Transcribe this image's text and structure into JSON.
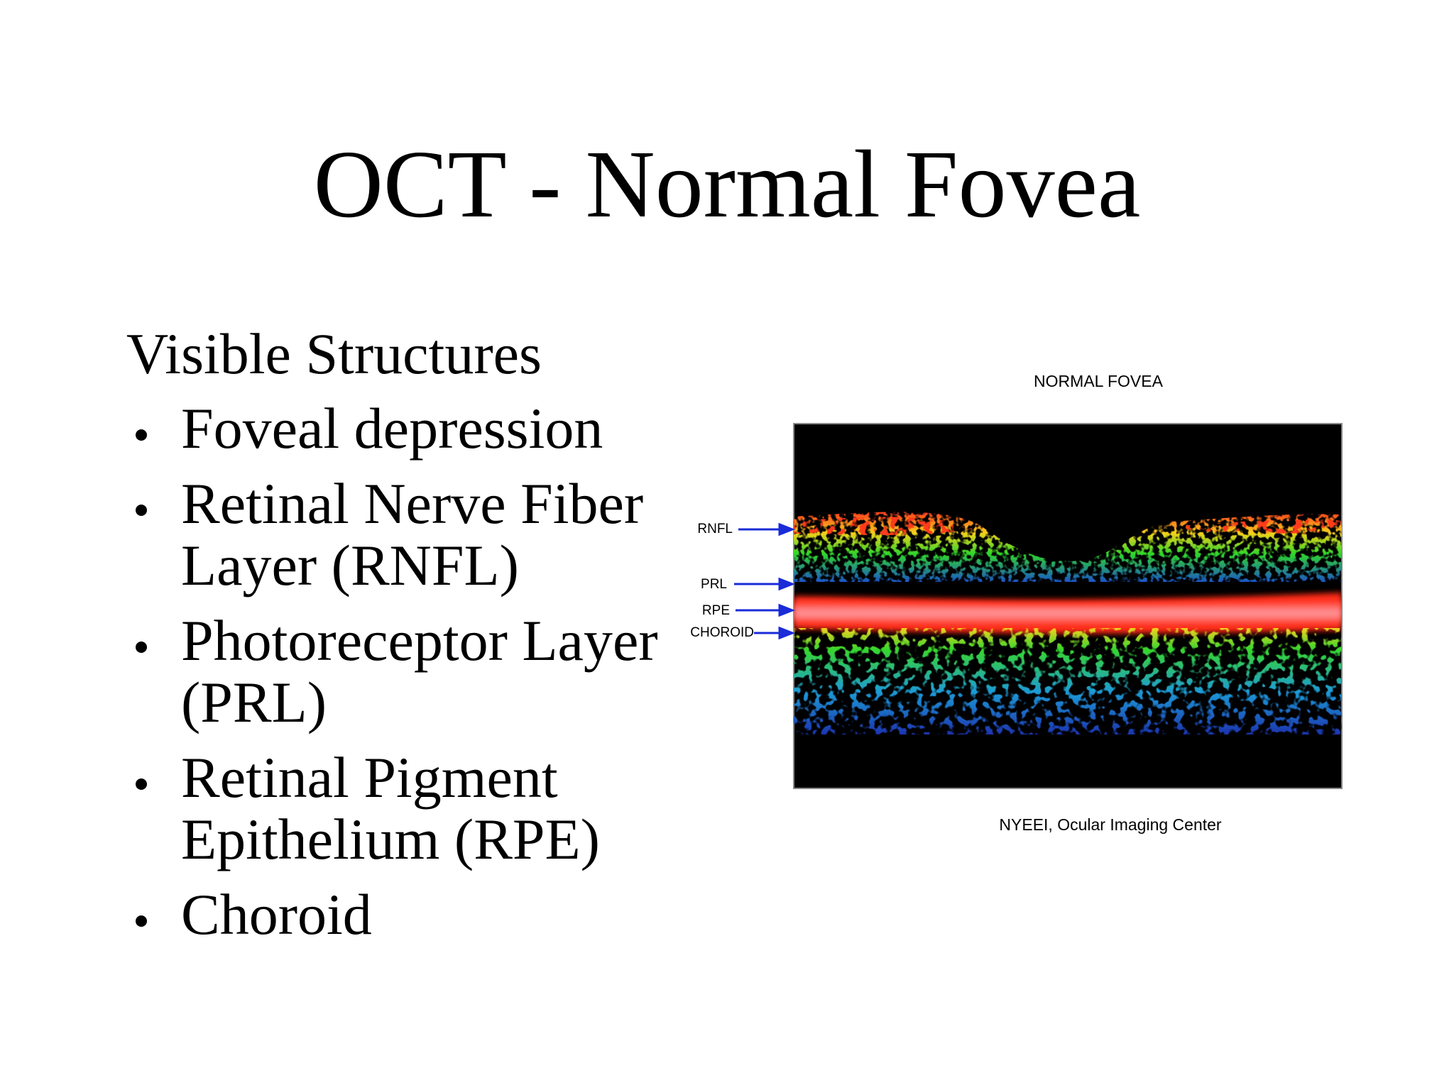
{
  "title": "OCT - Normal Fovea",
  "body": {
    "heading": "Visible Structures",
    "bullets": [
      "Foveal depression",
      "Retinal Nerve Fiber Layer (RNFL)",
      "Photoreceptor Layer (PRL)",
      "Retinal Pigment Epithelium (RPE)",
      "Choroid"
    ]
  },
  "figure": {
    "title": "NORMAL FOVEA",
    "labels": [
      "RNFL",
      "PRL",
      "RPE",
      "CHOROID"
    ],
    "caption": "NYEEI, Ocular Imaging Center"
  }
}
